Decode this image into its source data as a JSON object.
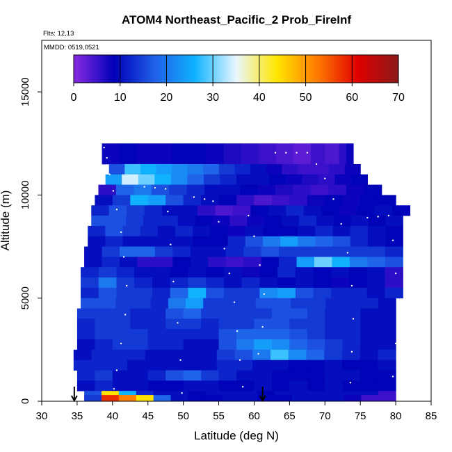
{
  "chart_data": {
    "type": "heatmap",
    "title": "ATOM4 Northeast_Pacific_2 Prob_FireInf",
    "annotations": {
      "flights": "Flts: 12,13",
      "dates": "MMDD: 0519,0521"
    },
    "xlabel": "Latitude (deg N)",
    "ylabel": "Altitude (m)",
    "xlim": [
      30,
      85
    ],
    "ylim": [
      0,
      17500
    ],
    "x_ticks": [
      "30",
      "35",
      "40",
      "45",
      "50",
      "55",
      "60",
      "65",
      "70",
      "75",
      "80",
      "85"
    ],
    "y_ticks": [
      "0",
      "5000",
      "10000",
      "15000"
    ],
    "colorbar": {
      "min": 0,
      "max": 70,
      "ticks": [
        "0",
        "10",
        "20",
        "30",
        "40",
        "50",
        "60",
        "70"
      ],
      "colors": [
        "#8a2be2",
        "#0000b8",
        "#2060e8",
        "#10b4ff",
        "#eaf6ff",
        "#ffe600",
        "#ff7a00",
        "#e00000",
        "#8b1a1a"
      ]
    },
    "arrows": [
      {
        "latitude": 34.6,
        "label": "flight-marker-1"
      },
      {
        "latitude": 61.2,
        "label": "flight-marker-2"
      }
    ],
    "rows": [
      {
        "y0": 11500,
        "y1": 12500,
        "x0": 38.5,
        "x1": 68,
        "v": [
          8,
          9,
          8,
          8,
          9,
          9,
          8,
          7,
          6,
          5,
          4,
          3
        ]
      },
      {
        "y0": 11500,
        "y1": 12500,
        "x0": 68,
        "x1": 74,
        "v": [
          5,
          5,
          4,
          4,
          6,
          8
        ]
      },
      {
        "y0": 11000,
        "y1": 11500,
        "x0": 39.5,
        "x1": 75,
        "v": [
          16,
          28,
          26,
          24,
          22,
          20,
          18,
          14,
          12,
          10,
          8,
          6,
          5,
          5,
          6,
          8
        ]
      },
      {
        "y0": 10500,
        "y1": 11000,
        "x0": 39,
        "x1": 76,
        "v": [
          24,
          34,
          30,
          26,
          22,
          18,
          14,
          12,
          10,
          10,
          9,
          8,
          7,
          6,
          8,
          9
        ]
      },
      {
        "y0": 10000,
        "y1": 10500,
        "x0": 38,
        "x1": 78,
        "v": [
          6,
          18,
          20,
          16,
          14,
          12,
          10,
          10,
          9,
          8,
          7,
          6,
          5,
          6,
          8,
          9
        ]
      },
      {
        "y0": 9500,
        "y1": 10000,
        "x0": 37.5,
        "x1": 80,
        "v": [
          10,
          14,
          26,
          24,
          16,
          12,
          10,
          9,
          6,
          4,
          5,
          6,
          8,
          9,
          8,
          9,
          9
        ]
      },
      {
        "y0": 9000,
        "y1": 9500,
        "x0": 37,
        "x1": 82,
        "v": [
          12,
          16,
          14,
          12,
          10,
          10,
          6,
          4,
          5,
          9,
          10,
          12,
          10,
          9,
          8,
          9,
          10,
          9
        ]
      },
      {
        "y0": 8500,
        "y1": 9000,
        "x0": 37,
        "x1": 81,
        "v": [
          16,
          16,
          14,
          12,
          12,
          10,
          9,
          8,
          6,
          8,
          9,
          10,
          12,
          10,
          9,
          10,
          9,
          10
        ]
      },
      {
        "y0": 8000,
        "y1": 8500,
        "x0": 36.5,
        "x1": 81,
        "v": [
          12,
          16,
          14,
          12,
          10,
          12,
          10,
          9,
          8,
          10,
          9,
          9,
          10,
          12,
          10,
          12,
          10,
          9
        ]
      },
      {
        "y0": 7500,
        "y1": 8000,
        "x0": 36.5,
        "x1": 81,
        "v": [
          10,
          12,
          10,
          10,
          10,
          10,
          9,
          9,
          12,
          16,
          20,
          24,
          20,
          18,
          16,
          12,
          10,
          9
        ]
      },
      {
        "y0": 7000,
        "y1": 7500,
        "x0": 36,
        "x1": 81,
        "v": [
          10,
          14,
          18,
          18,
          14,
          12,
          10,
          10,
          12,
          14,
          16,
          14,
          14,
          14,
          14,
          14,
          14,
          12
        ]
      },
      {
        "y0": 6500,
        "y1": 7000,
        "x0": 36,
        "x1": 81,
        "v": [
          10,
          12,
          10,
          6,
          6,
          9,
          10,
          6,
          5,
          6,
          9,
          12,
          24,
          30,
          26,
          20,
          18,
          16
        ]
      },
      {
        "y0": 6000,
        "y1": 6500,
        "x0": 35.5,
        "x1": 81,
        "v": [
          12,
          14,
          12,
          10,
          10,
          9,
          10,
          9,
          10,
          8,
          9,
          12,
          10,
          9,
          10,
          9,
          10,
          6
        ]
      },
      {
        "y0": 5500,
        "y1": 6000,
        "x0": 35.5,
        "x1": 81,
        "v": [
          14,
          20,
          14,
          12,
          10,
          12,
          14,
          12,
          10,
          12,
          10,
          9,
          10,
          9,
          8,
          9,
          10,
          6
        ]
      },
      {
        "y0": 5000,
        "y1": 5500,
        "x0": 35.5,
        "x1": 81,
        "v": [
          12,
          16,
          14,
          14,
          12,
          18,
          26,
          16,
          14,
          14,
          22,
          24,
          16,
          14,
          12,
          12,
          10,
          12
        ]
      },
      {
        "y0": 4500,
        "y1": 5000,
        "x0": 35.5,
        "x1": 80,
        "v": [
          16,
          16,
          14,
          14,
          12,
          20,
          24,
          14,
          14,
          14,
          16,
          16,
          14,
          14,
          12,
          12,
          12,
          10
        ]
      },
      {
        "y0": 4000,
        "y1": 4500,
        "x0": 35,
        "x1": 80,
        "v": [
          14,
          14,
          14,
          12,
          12,
          16,
          18,
          14,
          14,
          14,
          14,
          16,
          16,
          14,
          12,
          12,
          10,
          10
        ]
      },
      {
        "y0": 3500,
        "y1": 4000,
        "x0": 35,
        "x1": 80,
        "v": [
          12,
          14,
          14,
          12,
          12,
          14,
          14,
          12,
          14,
          14,
          16,
          16,
          14,
          14,
          12,
          12,
          10,
          10
        ]
      },
      {
        "y0": 3000,
        "y1": 3500,
        "x0": 35,
        "x1": 80,
        "v": [
          12,
          14,
          14,
          14,
          12,
          12,
          12,
          12,
          16,
          18,
          18,
          18,
          16,
          14,
          12,
          12,
          10,
          10
        ]
      },
      {
        "y0": 2500,
        "y1": 3000,
        "x0": 35,
        "x1": 80,
        "v": [
          10,
          12,
          14,
          14,
          12,
          12,
          10,
          10,
          16,
          20,
          24,
          22,
          18,
          16,
          14,
          12,
          10,
          10
        ]
      },
      {
        "y0": 2000,
        "y1": 2500,
        "x0": 34.5,
        "x1": 80,
        "v": [
          10,
          12,
          12,
          12,
          10,
          10,
          10,
          10,
          14,
          16,
          20,
          28,
          22,
          18,
          14,
          12,
          10,
          12
        ]
      },
      {
        "y0": 1500,
        "y1": 2000,
        "x0": 34.5,
        "x1": 80,
        "v": [
          12,
          12,
          12,
          10,
          10,
          10,
          10,
          10,
          12,
          12,
          10,
          10,
          9,
          9,
          10,
          9,
          9,
          10
        ]
      },
      {
        "y0": 1000,
        "y1": 1500,
        "x0": 35,
        "x1": 80,
        "v": [
          12,
          14,
          10,
          10,
          12,
          16,
          18,
          14,
          12,
          10,
          10,
          9,
          9,
          9,
          10,
          10,
          9,
          9
        ]
      },
      {
        "y0": 500,
        "y1": 1000,
        "x0": 35,
        "x1": 80,
        "v": [
          10,
          12,
          10,
          10,
          9,
          9,
          10,
          10,
          9,
          9,
          10,
          9,
          10,
          9,
          10,
          9,
          9,
          9
        ]
      },
      {
        "y0": 300,
        "y1": 500,
        "x0": 36,
        "x1": 80,
        "v": [
          16,
          44,
          26,
          12,
          10,
          10,
          9,
          10,
          10,
          10,
          9,
          10,
          10,
          10,
          10,
          10,
          10,
          5
        ]
      },
      {
        "y0": 0,
        "y1": 300,
        "x0": 36,
        "x1": 80,
        "v": [
          14,
          58,
          52,
          44,
          18,
          10,
          9,
          9,
          10,
          10,
          9,
          9,
          10,
          10,
          10,
          8,
          5,
          5
        ]
      }
    ],
    "track_points": [
      {
        "x": 38.8,
        "y": 12300
      },
      {
        "x": 39.2,
        "y": 11800
      },
      {
        "x": 39.6,
        "y": 11000
      },
      {
        "x": 40.1,
        "y": 10200
      },
      {
        "x": 40.6,
        "y": 9300
      },
      {
        "x": 41.2,
        "y": 8200
      },
      {
        "x": 41.6,
        "y": 7000
      },
      {
        "x": 42.0,
        "y": 5600
      },
      {
        "x": 41.8,
        "y": 4200
      },
      {
        "x": 41.2,
        "y": 2800
      },
      {
        "x": 40.6,
        "y": 1500
      },
      {
        "x": 40.2,
        "y": 600
      },
      {
        "x": 44.5,
        "y": 10400
      },
      {
        "x": 46.0,
        "y": 10350
      },
      {
        "x": 47.5,
        "y": 10300
      },
      {
        "x": 47.8,
        "y": 9200
      },
      {
        "x": 48.2,
        "y": 7600
      },
      {
        "x": 48.6,
        "y": 5800
      },
      {
        "x": 49.2,
        "y": 3800
      },
      {
        "x": 49.6,
        "y": 2000
      },
      {
        "x": 49.8,
        "y": 400
      },
      {
        "x": 51.5,
        "y": 9900
      },
      {
        "x": 53.0,
        "y": 9800
      },
      {
        "x": 54.2,
        "y": 9700
      },
      {
        "x": 55.0,
        "y": 8700
      },
      {
        "x": 55.8,
        "y": 7400
      },
      {
        "x": 56.5,
        "y": 6200
      },
      {
        "x": 57.2,
        "y": 4800
      },
      {
        "x": 57.6,
        "y": 3400
      },
      {
        "x": 58.0,
        "y": 2000
      },
      {
        "x": 58.4,
        "y": 700
      },
      {
        "x": 59.2,
        "y": 9000
      },
      {
        "x": 60.0,
        "y": 8000
      },
      {
        "x": 60.8,
        "y": 6600
      },
      {
        "x": 61.4,
        "y": 5200
      },
      {
        "x": 61.2,
        "y": 3600
      },
      {
        "x": 60.6,
        "y": 2300
      },
      {
        "x": 63.0,
        "y": 12050
      },
      {
        "x": 64.5,
        "y": 12050
      },
      {
        "x": 66.0,
        "y": 12050
      },
      {
        "x": 67.5,
        "y": 12050
      },
      {
        "x": 68.8,
        "y": 11500
      },
      {
        "x": 70.0,
        "y": 10800
      },
      {
        "x": 71.2,
        "y": 9800
      },
      {
        "x": 72.3,
        "y": 8600
      },
      {
        "x": 73.2,
        "y": 7200
      },
      {
        "x": 73.8,
        "y": 5600
      },
      {
        "x": 74.0,
        "y": 4000
      },
      {
        "x": 73.8,
        "y": 2400
      },
      {
        "x": 73.6,
        "y": 900
      },
      {
        "x": 76.0,
        "y": 8900
      },
      {
        "x": 77.5,
        "y": 8950
      },
      {
        "x": 79.0,
        "y": 9000
      },
      {
        "x": 79.6,
        "y": 7800
      },
      {
        "x": 80.0,
        "y": 6200
      },
      {
        "x": 80.2,
        "y": 4500
      },
      {
        "x": 80.0,
        "y": 2800
      },
      {
        "x": 79.6,
        "y": 1200
      }
    ]
  }
}
